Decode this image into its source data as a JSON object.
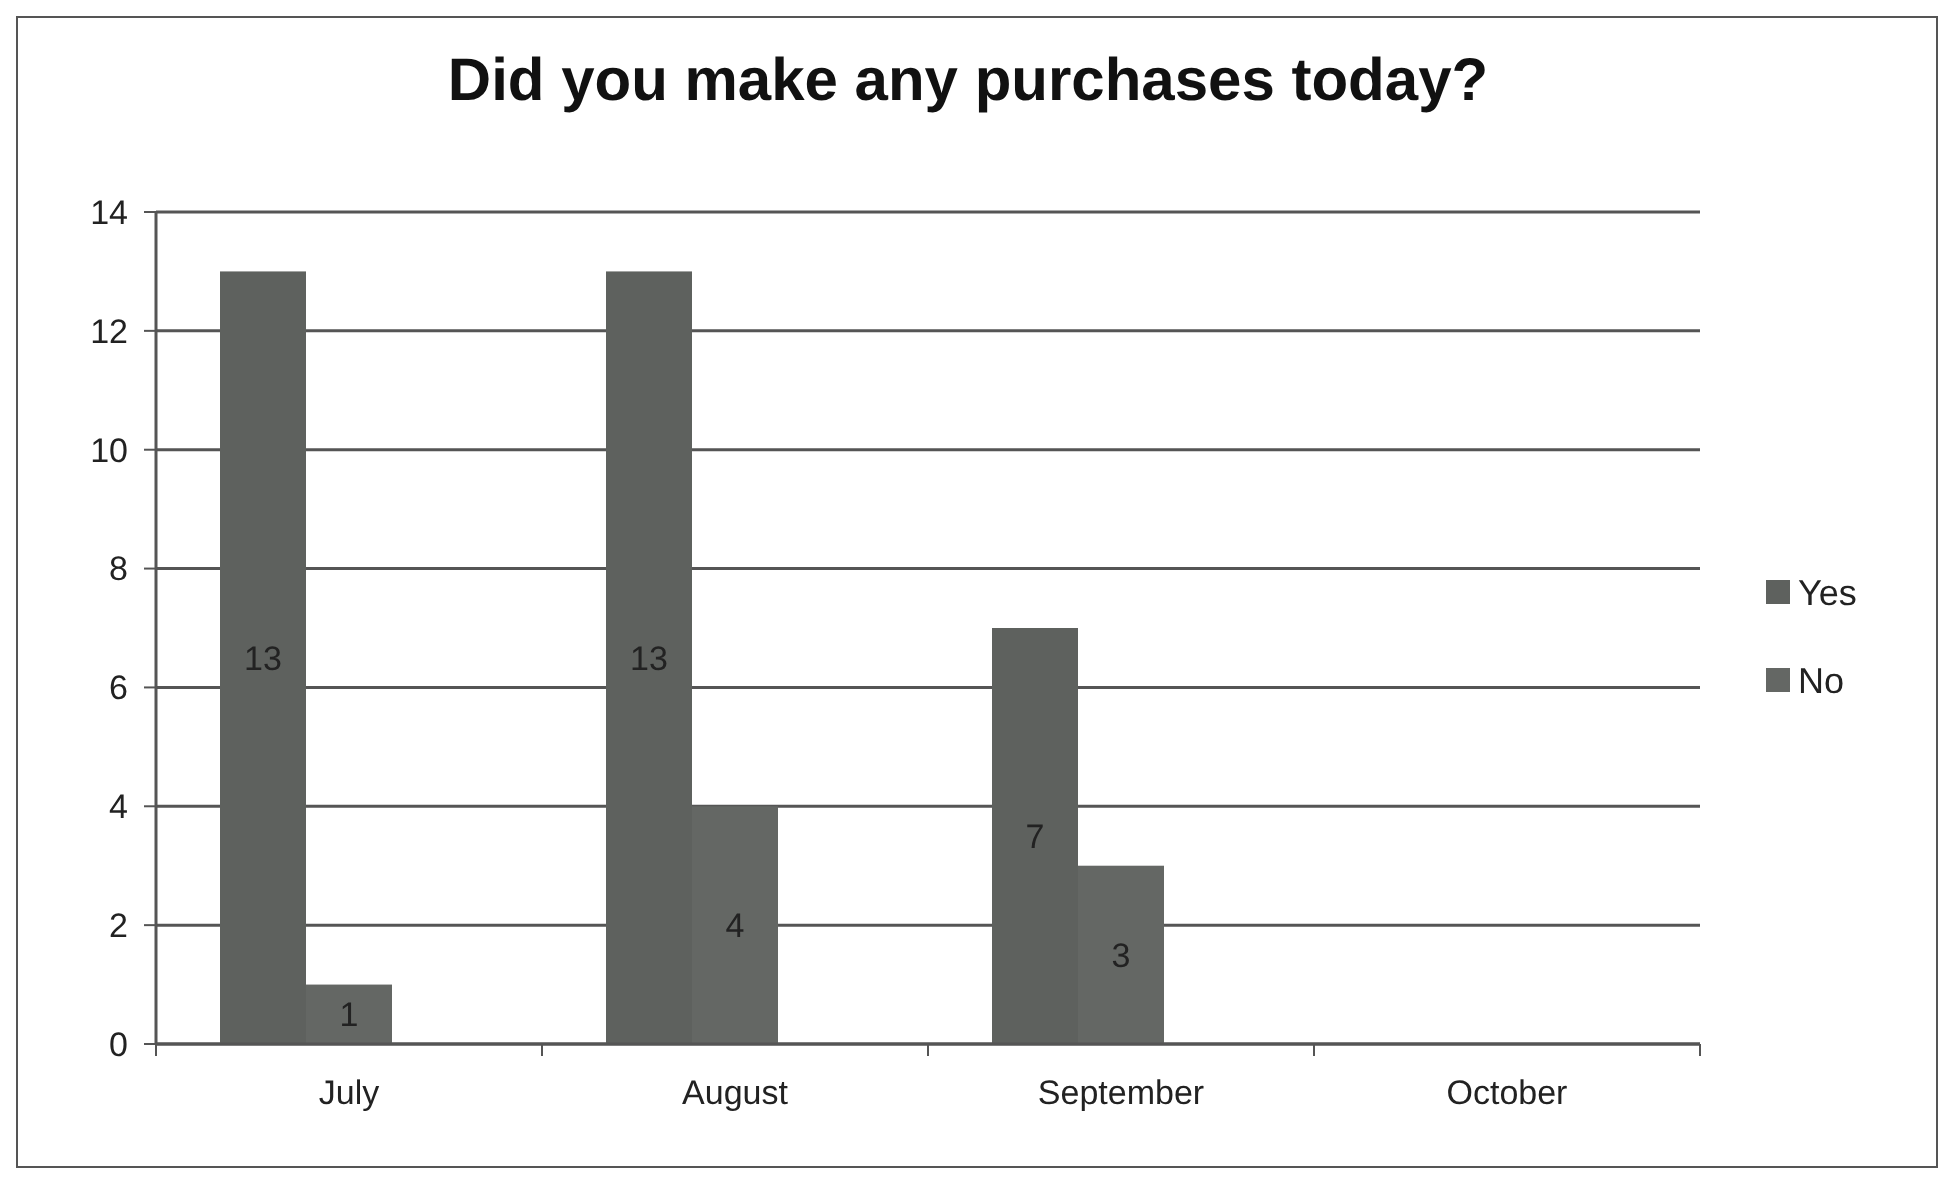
{
  "chart_data": {
    "type": "bar",
    "title": "Did you make any purchases today?",
    "categories": [
      "July",
      "August",
      "September",
      "October"
    ],
    "series": [
      {
        "name": "Yes",
        "color": "#5e615e",
        "values": [
          13,
          13,
          7,
          null
        ]
      },
      {
        "name": "No",
        "color": "#646764",
        "values": [
          1,
          4,
          3,
          null
        ]
      }
    ],
    "ylim": [
      0,
      14
    ],
    "yticks": [
      0,
      2,
      4,
      6,
      8,
      10,
      12,
      14
    ],
    "grid": "y",
    "legend": "right",
    "data_labels": true
  }
}
